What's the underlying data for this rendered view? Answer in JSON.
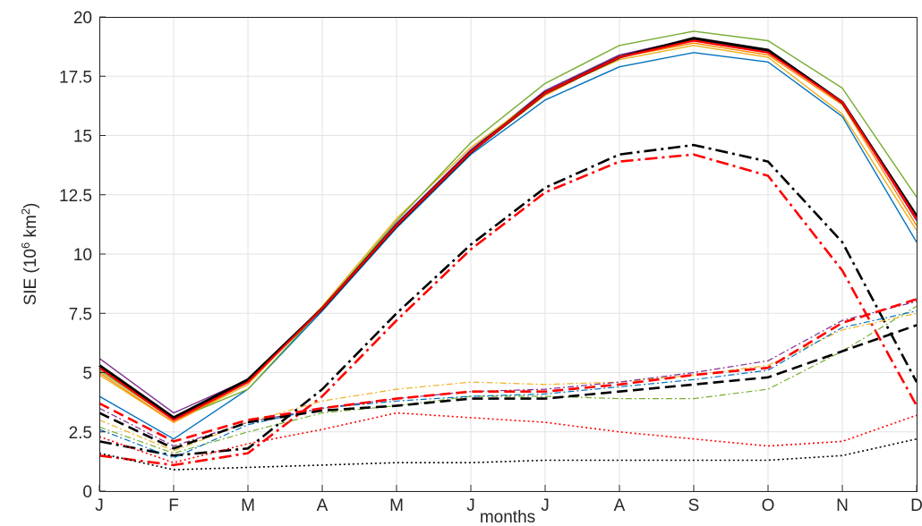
{
  "chart_data": {
    "type": "line",
    "title": "",
    "xlabel": "months",
    "ylabel": {
      "prefix": "SIE (10",
      "sup1": "6",
      "mid": " km",
      "sup2": "2",
      "suffix": ")"
    },
    "categories": [
      "J",
      "F",
      "M",
      "A",
      "M",
      "J",
      "J",
      "A",
      "S",
      "O",
      "N",
      "D"
    ],
    "yticks": [
      "0",
      "2.5",
      "5",
      "7.5",
      "10",
      "12.5",
      "15",
      "17.5",
      "20"
    ],
    "ylim": [
      0,
      20
    ],
    "grid": true,
    "series": [
      {
        "color": "#7e2f8e",
        "width": 1.4,
        "dash": "",
        "values": [
          5.6,
          3.3,
          4.7,
          7.7,
          11.3,
          14.4,
          16.9,
          18.4,
          19.1,
          18.6,
          16.4,
          11.4
        ]
      },
      {
        "color": "#edb120",
        "width": 1.4,
        "dash": "",
        "values": [
          4.9,
          2.9,
          4.5,
          7.8,
          11.5,
          14.5,
          16.8,
          18.2,
          18.8,
          18.3,
          15.9,
          11.0
        ]
      },
      {
        "color": "#0072bd",
        "width": 1.4,
        "dash": "",
        "values": [
          4.0,
          2.2,
          4.3,
          7.6,
          11.1,
          14.2,
          16.5,
          17.9,
          18.5,
          18.1,
          15.8,
          10.5
        ]
      },
      {
        "color": "#77ac30",
        "width": 1.4,
        "dash": "",
        "values": [
          5.1,
          3.0,
          4.3,
          7.7,
          11.4,
          14.7,
          17.2,
          18.8,
          19.4,
          19.0,
          17.0,
          12.4
        ]
      },
      {
        "color": "#ff8800",
        "width": 1.4,
        "dash": "",
        "values": [
          5.0,
          2.9,
          4.6,
          7.7,
          11.2,
          14.3,
          16.7,
          18.3,
          18.9,
          18.4,
          16.3,
          11.2
        ]
      },
      {
        "color": "#000000",
        "width": 3.2,
        "dash": "",
        "values": [
          5.3,
          3.1,
          4.7,
          7.7,
          11.2,
          14.3,
          16.8,
          18.3,
          19.1,
          18.6,
          16.4,
          11.6
        ]
      },
      {
        "color": "#ff0000",
        "width": 2.2,
        "dash": "",
        "values": [
          5.2,
          3.0,
          4.6,
          7.7,
          11.2,
          14.3,
          16.8,
          18.3,
          19.0,
          18.5,
          16.4,
          11.5
        ]
      },
      {
        "color": "#000000",
        "width": 2.6,
        "dash": "14 5 3 5",
        "values": [
          2.1,
          1.5,
          1.8,
          4.3,
          7.5,
          10.4,
          12.8,
          14.2,
          14.6,
          13.9,
          10.5,
          4.6
        ]
      },
      {
        "color": "#ff0000",
        "width": 2.6,
        "dash": "14 5 3 5",
        "values": [
          1.5,
          1.1,
          1.6,
          4.0,
          7.2,
          10.2,
          12.6,
          13.9,
          14.2,
          13.3,
          9.3,
          3.6
        ]
      },
      {
        "color": "#edb120",
        "width": 1.2,
        "dash": "7 3 2 3",
        "values": [
          3.0,
          1.7,
          2.9,
          3.8,
          4.3,
          4.6,
          4.5,
          4.6,
          4.9,
          5.3,
          6.8,
          7.5
        ]
      },
      {
        "color": "#7e2f8e",
        "width": 1.2,
        "dash": "7 3 2 3",
        "values": [
          3.5,
          1.9,
          2.9,
          3.5,
          3.9,
          4.2,
          4.3,
          4.6,
          5.0,
          5.5,
          7.2,
          8.0
        ]
      },
      {
        "color": "#77ac30",
        "width": 1.2,
        "dash": "7 3 2 3",
        "values": [
          2.7,
          1.6,
          2.5,
          3.3,
          3.6,
          4.0,
          4.0,
          3.9,
          3.9,
          4.3,
          5.9,
          7.8
        ]
      },
      {
        "color": "#0072bd",
        "width": 1.2,
        "dash": "7 3 2 3",
        "values": [
          2.6,
          1.4,
          2.8,
          3.5,
          3.8,
          4.0,
          4.1,
          4.4,
          4.7,
          5.1,
          6.9,
          7.6
        ]
      },
      {
        "color": "#000000",
        "width": 2.6,
        "dash": "12 6",
        "values": [
          3.3,
          1.8,
          2.9,
          3.4,
          3.6,
          3.9,
          3.9,
          4.2,
          4.5,
          4.8,
          5.9,
          7.0
        ]
      },
      {
        "color": "#ff0000",
        "width": 2.6,
        "dash": "12 6",
        "values": [
          3.7,
          2.1,
          3.0,
          3.5,
          3.9,
          4.2,
          4.2,
          4.5,
          4.9,
          5.2,
          7.1,
          8.1
        ]
      },
      {
        "color": "#ff0000",
        "width": 1.6,
        "dash": "2 3",
        "values": [
          2.3,
          1.2,
          2.0,
          2.6,
          3.3,
          3.1,
          2.9,
          2.5,
          2.2,
          1.9,
          2.1,
          3.2
        ]
      },
      {
        "color": "#000000",
        "width": 1.6,
        "dash": "2 3",
        "values": [
          1.6,
          0.9,
          1.0,
          1.1,
          1.2,
          1.2,
          1.3,
          1.3,
          1.3,
          1.3,
          1.5,
          2.2
        ]
      }
    ]
  }
}
